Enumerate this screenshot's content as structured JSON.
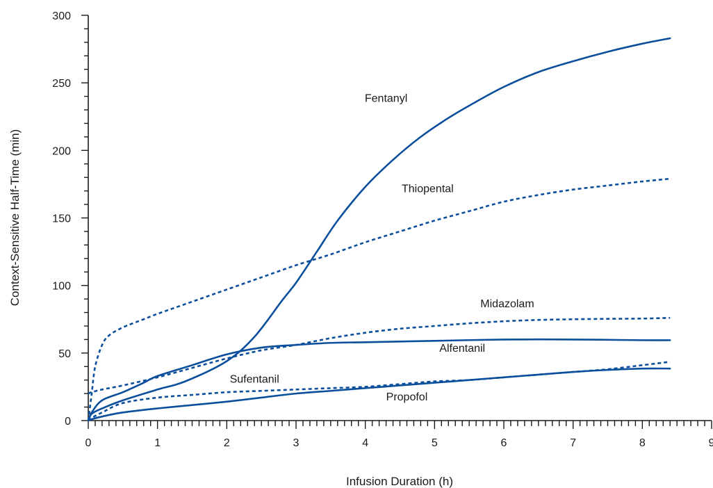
{
  "colors": {
    "series": "#0b4f9c",
    "axis": "#1a1a1a"
  },
  "chart_data": {
    "type": "line",
    "title": "",
    "xlabel": "Infusion Duration (h)",
    "ylabel": "Context-Sensitive Half-Time (min)",
    "xlim": [
      0,
      9
    ],
    "ylim": [
      0,
      300
    ],
    "xticks": [
      "0",
      "1",
      "2",
      "3",
      "4",
      "5",
      "6",
      "7",
      "8",
      "9"
    ],
    "yticks": [
      "0",
      "50",
      "100",
      "150",
      "200",
      "250",
      "300"
    ],
    "grid": false,
    "legend": "none",
    "series": [
      {
        "name": "Fentanyl",
        "style": "solid",
        "x": [
          0,
          0.05,
          0.2,
          0.5,
          1.0,
          1.4,
          2.0,
          2.4,
          2.8,
          3.0,
          3.3,
          3.6,
          4.0,
          4.4,
          4.8,
          5.2,
          5.6,
          6.0,
          6.5,
          7.0,
          7.5,
          8.0,
          8.4
        ],
        "y": [
          0,
          5,
          9,
          15,
          23,
          29,
          44,
          62,
          89,
          102,
          125,
          148,
          173,
          193,
          210,
          224,
          236,
          247,
          258,
          266,
          273,
          279,
          283
        ]
      },
      {
        "name": "Thiopental",
        "style": "dotted",
        "x": [
          0,
          0.05,
          0.1,
          0.2,
          0.3,
          0.5,
          0.8,
          1.0,
          1.5,
          2.0,
          2.5,
          3.0,
          3.5,
          4.0,
          4.5,
          5.0,
          5.5,
          6.0,
          6.5,
          7.0,
          7.5,
          8.0,
          8.4
        ],
        "y": [
          0,
          20,
          40,
          56,
          63,
          69,
          75,
          79,
          88,
          97,
          106,
          115,
          123,
          132,
          140,
          148,
          155,
          162,
          167,
          171,
          174,
          177,
          179
        ]
      },
      {
        "name": "Midazolam",
        "style": "dotted",
        "x": [
          0,
          0.05,
          0.2,
          0.5,
          1.0,
          1.5,
          2.0,
          2.5,
          3.0,
          3.5,
          4.0,
          4.5,
          5.0,
          5.5,
          6.0,
          6.5,
          7.0,
          7.5,
          8.0,
          8.4
        ],
        "y": [
          20,
          21,
          23,
          26,
          32,
          39,
          46,
          52,
          56,
          61,
          65,
          68,
          70,
          72,
          73.5,
          74.5,
          75,
          75.3,
          75.5,
          76
        ]
      },
      {
        "name": "Alfentanil",
        "style": "solid",
        "x": [
          0,
          0.05,
          0.2,
          0.5,
          0.8,
          1.0,
          1.5,
          2.0,
          2.5,
          3.0,
          3.5,
          4.0,
          5.0,
          6.0,
          7.0,
          8.0,
          8.4
        ],
        "y": [
          0,
          6,
          15,
          21,
          28,
          33,
          41,
          49,
          54,
          56,
          57.5,
          58,
          59,
          60,
          60,
          59.5,
          59.5
        ]
      },
      {
        "name": "Sufentanil",
        "style": "dotted",
        "x": [
          0,
          0.05,
          0.2,
          0.5,
          1.0,
          1.5,
          2.0,
          2.5,
          3.0,
          3.5,
          4.0,
          4.5,
          5.0,
          5.5,
          6.0,
          6.5,
          7.0,
          7.5,
          8.0,
          8.4
        ],
        "y": [
          0,
          2,
          6,
          13,
          17,
          19,
          21,
          22,
          23,
          24,
          25,
          27,
          29,
          30,
          32,
          34,
          36,
          38,
          41,
          43.5
        ]
      },
      {
        "name": "Propofol",
        "style": "solid",
        "x": [
          0,
          0.05,
          0.2,
          0.5,
          1.0,
          1.5,
          2.0,
          2.5,
          3.0,
          3.5,
          4.0,
          4.5,
          5.0,
          5.5,
          6.0,
          6.5,
          7.0,
          7.5,
          8.0,
          8.4
        ],
        "y": [
          0,
          1,
          3,
          6,
          9,
          11.5,
          14,
          17,
          20,
          22,
          24,
          26,
          28,
          30,
          32,
          34,
          36,
          37.5,
          38.5,
          38.5
        ]
      }
    ],
    "annotations": [
      {
        "text": "Fentanyl",
        "x": 4.3,
        "y": 236
      },
      {
        "text": "Thiopental",
        "x": 4.9,
        "y": 169
      },
      {
        "text": "Midazolam",
        "x": 6.05,
        "y": 84
      },
      {
        "text": "Alfentanil",
        "x": 5.4,
        "y": 51
      },
      {
        "text": "Sufentanil",
        "x": 2.4,
        "y": 28
      },
      {
        "text": "Propofol",
        "x": 4.6,
        "y": 15
      }
    ]
  }
}
